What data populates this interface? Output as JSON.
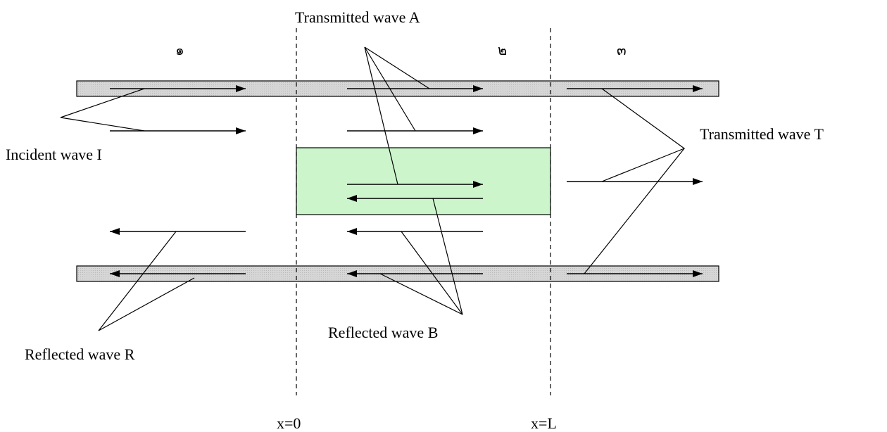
{
  "regions": {
    "left": "๑",
    "middle": "๒",
    "right": "๓"
  },
  "labels": {
    "transmitted_A": "Transmitted wave A",
    "incident_I": "Incident wave I",
    "transmitted_T": "Transmitted wave T",
    "reflected_R": "Reflected wave R",
    "reflected_B": "Reflected wave B"
  },
  "boundaries": {
    "left": "x=0",
    "right": "x=L"
  },
  "colors": {
    "slab": "#ccf5cc",
    "tube": "#d4d4d4",
    "line": "#000000"
  }
}
